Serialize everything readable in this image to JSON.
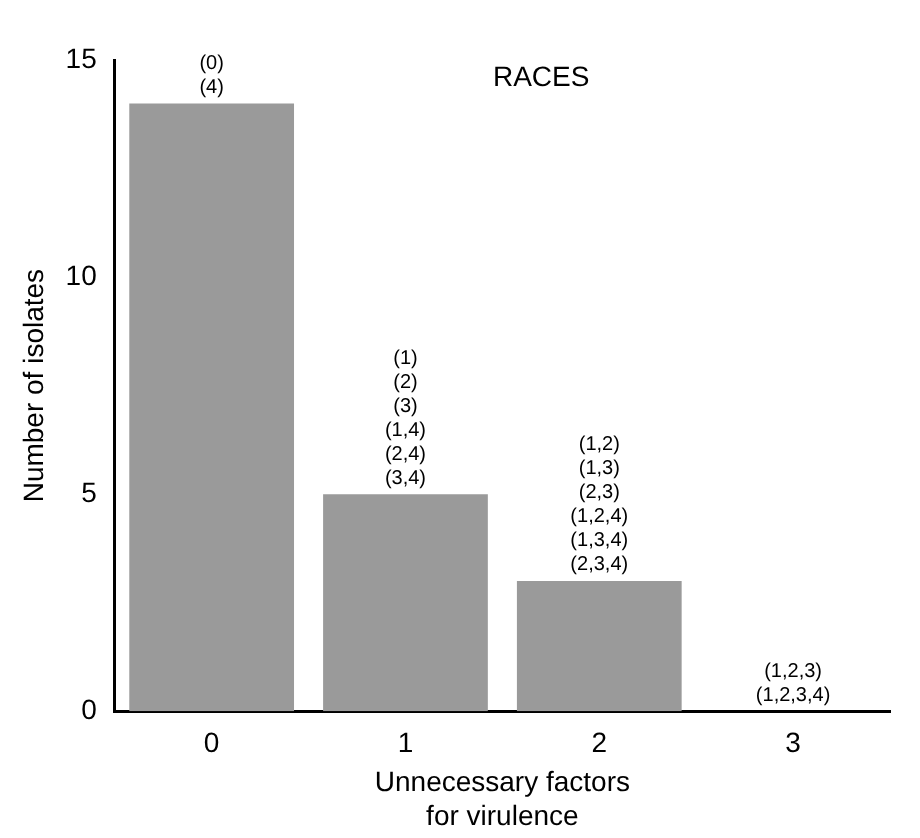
{
  "chart_data": {
    "type": "bar",
    "xlabel": "Unnecessary factors\nfor virulence",
    "ylabel": "Number of isolates",
    "categories": [
      "0",
      "1",
      "2",
      "3"
    ],
    "values": [
      14,
      5,
      3,
      0
    ],
    "color": "#9a9a9a",
    "ylim": [
      0,
      15
    ],
    "yticks": [
      0,
      5,
      10,
      15
    ],
    "grid": false,
    "legend": false,
    "annotations": [
      "RACES",
      {
        "text": "(0)\n(4)",
        "x": "0",
        "y": 14
      },
      {
        "text": "(1)\n(2)\n(3)\n(1,4)\n(2,4)\n(3,4)",
        "x": "1",
        "y": 5
      },
      {
        "text": "(1,2)\n(1,3)\n(2,3)\n(1,2,4)\n(1,3,4)\n(2,3,4)",
        "x": "2",
        "y": 3
      },
      {
        "text": "(1,2,3)\n(1,2,3,4)",
        "x": "3",
        "y": 0
      }
    ]
  }
}
